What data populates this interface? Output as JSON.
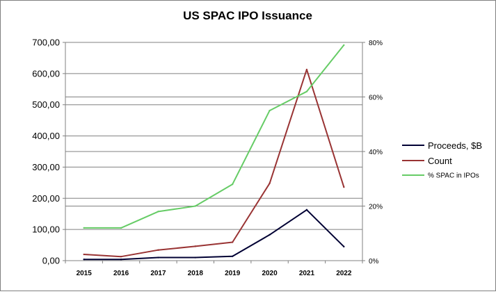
{
  "chart_data": {
    "type": "line",
    "title": "US SPAC IPO Issuance",
    "xlabel": "",
    "ylabel": "",
    "categories": [
      "2015",
      "2016",
      "2017",
      "2018",
      "2019",
      "2020",
      "2021",
      "2022"
    ],
    "y_left": {
      "lim": [
        0,
        700
      ],
      "ticks": [
        0,
        100,
        200,
        300,
        400,
        500,
        600,
        700
      ],
      "tick_labels": [
        "0,00",
        "100,00",
        "200,00",
        "300,00",
        "400,00",
        "500,00",
        "600,00",
        "700,00"
      ]
    },
    "y_right": {
      "lim": [
        0,
        80
      ],
      "ticks": [
        0,
        20,
        40,
        60,
        80
      ],
      "tick_labels": [
        "0%",
        "20%",
        "40%",
        "60%",
        "80%"
      ]
    },
    "grid": true,
    "legend_position": "right",
    "series": [
      {
        "name": "Proceeds, $B",
        "axis": "left",
        "color": "#000033",
        "values": [
          4,
          4,
          10,
          10,
          14,
          83,
          163,
          45
        ]
      },
      {
        "name": "Count",
        "axis": "left",
        "color": "#993333",
        "values": [
          20,
          13,
          34,
          46,
          59,
          248,
          613,
          236
        ]
      },
      {
        "name": "% SPAC in IPOs",
        "axis": "right",
        "color": "#66cc66",
        "values": [
          12,
          12,
          18,
          20,
          28,
          55,
          62,
          79
        ]
      }
    ]
  }
}
